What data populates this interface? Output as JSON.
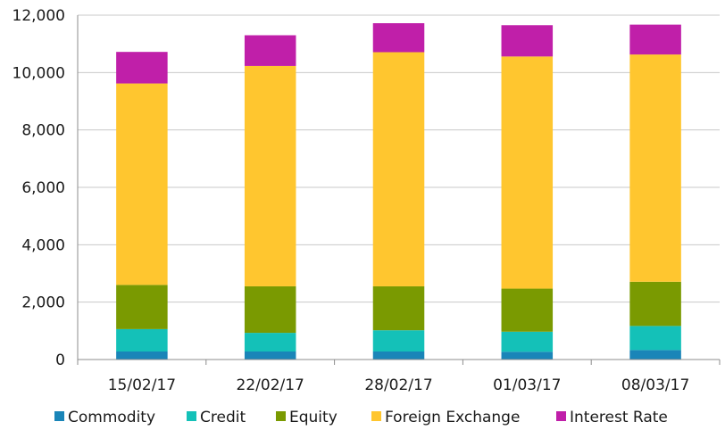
{
  "chart_data": {
    "type": "bar",
    "stacked": true,
    "title": "",
    "xlabel": "",
    "ylabel": "",
    "ylim": [
      0,
      12000
    ],
    "yticks": [
      0,
      2000,
      4000,
      6000,
      8000,
      10000,
      12000
    ],
    "ytick_labels": [
      "0",
      "2,000",
      "4,000",
      "6,000",
      "8,000",
      "10,000",
      "12,000"
    ],
    "grid": "horizontal",
    "legend_position": "bottom",
    "categories": [
      "15/02/17",
      "22/02/17",
      "28/02/17",
      "01/03/17",
      "08/03/17"
    ],
    "series": [
      {
        "name": "Commodity",
        "color": "#1a85b8",
        "values": [
          280,
          280,
          280,
          270,
          330
        ]
      },
      {
        "name": "Credit",
        "color": "#14c1b8",
        "values": [
          780,
          650,
          740,
          700,
          840
        ]
      },
      {
        "name": "Equity",
        "color": "#7a9a01",
        "values": [
          1540,
          1620,
          1530,
          1500,
          1540
        ]
      },
      {
        "name": "Foreign Exchange",
        "color": "#ffc62f",
        "values": [
          7020,
          7680,
          8160,
          8090,
          7920
        ]
      },
      {
        "name": "Interest Rate",
        "color": "#c01fa9",
        "values": [
          1100,
          1070,
          1010,
          1090,
          1040
        ]
      }
    ]
  }
}
